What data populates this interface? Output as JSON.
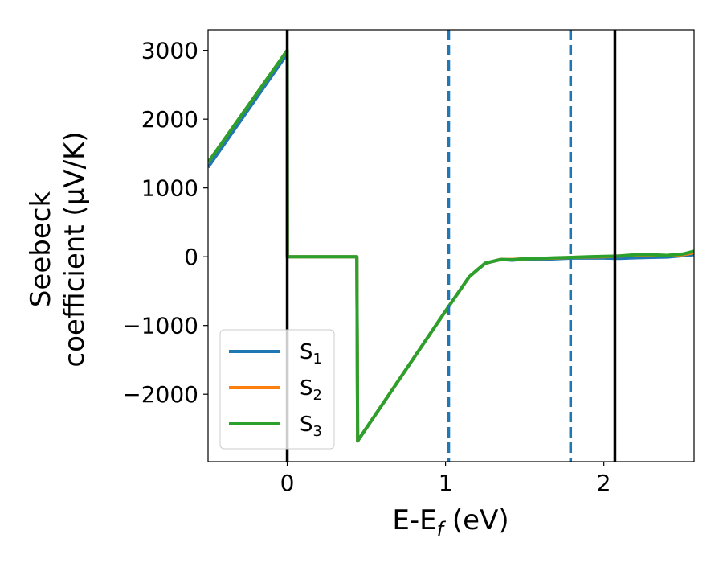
{
  "chart_data": {
    "type": "line",
    "xlabel": "E-E",
    "xlabel_sub": "f",
    "xlabel_unit": " (eV)",
    "ylabel_line1": "Seebeck",
    "ylabel_line2": "coefficient  (μV/K)",
    "xlim": [
      -0.5,
      2.57
    ],
    "ylim": [
      -2980,
      3300
    ],
    "x_ticks": [
      0,
      1,
      2
    ],
    "x_tick_labels": [
      "0",
      "1",
      "2"
    ],
    "y_ticks": [
      -2000,
      -1000,
      0,
      1000,
      2000,
      3000
    ],
    "y_tick_labels": [
      "−2000",
      "−1000",
      "0",
      "1000",
      "2000",
      "3000"
    ],
    "vlines": [
      {
        "x": 0.0,
        "style": "solid",
        "color": "#000000"
      },
      {
        "x": 1.02,
        "style": "dashed",
        "color": "#1f77b4"
      },
      {
        "x": 1.79,
        "style": "dashed",
        "color": "#1f77b4"
      },
      {
        "x": 2.07,
        "style": "solid",
        "color": "#000000"
      }
    ],
    "legend_position": "lower-left",
    "series": [
      {
        "name": "S",
        "sub": "1",
        "color": "#1f77b4",
        "x": [
          -0.5,
          0.0,
          0.001,
          0.44,
          0.445,
          1.0,
          1.15,
          1.25,
          1.35,
          1.42,
          1.5,
          1.6,
          1.7,
          1.8,
          1.9,
          2.0,
          2.1,
          2.2,
          2.3,
          2.4,
          2.5,
          2.57
        ],
        "y": [
          1300,
          2950,
          0,
          0,
          -2680,
          -790,
          -290,
          -95,
          -40,
          -50,
          -35,
          -40,
          -30,
          -20,
          -20,
          -20,
          -25,
          -15,
          -10,
          -5,
          15,
          30
        ]
      },
      {
        "name": "S",
        "sub": "2",
        "color": "#ff7f0e",
        "x": [
          -0.5,
          0.0,
          0.001,
          0.44,
          0.445,
          1.0,
          1.15,
          1.25,
          1.35,
          1.42,
          1.5,
          1.6,
          1.7,
          1.8,
          1.9,
          2.0,
          2.1,
          2.2,
          2.3,
          2.4,
          2.5,
          2.57
        ],
        "y": [
          1370,
          3000,
          0,
          0,
          -2680,
          -790,
          -290,
          -95,
          -40,
          -40,
          -30,
          -25,
          -20,
          -10,
          -5,
          0,
          10,
          20,
          20,
          20,
          30,
          60
        ]
      },
      {
        "name": "S",
        "sub": "3",
        "color": "#2ca02c",
        "x": [
          -0.5,
          0.0,
          0.001,
          0.44,
          0.445,
          1.0,
          1.15,
          1.25,
          1.35,
          1.42,
          1.5,
          1.6,
          1.7,
          1.8,
          1.9,
          2.0,
          2.1,
          2.2,
          2.3,
          2.4,
          2.5,
          2.57
        ],
        "y": [
          1370,
          3000,
          0,
          0,
          -2680,
          -790,
          -290,
          -95,
          -40,
          -45,
          -30,
          -25,
          -15,
          -10,
          0,
          5,
          10,
          30,
          30,
          20,
          40,
          80
        ]
      }
    ]
  }
}
